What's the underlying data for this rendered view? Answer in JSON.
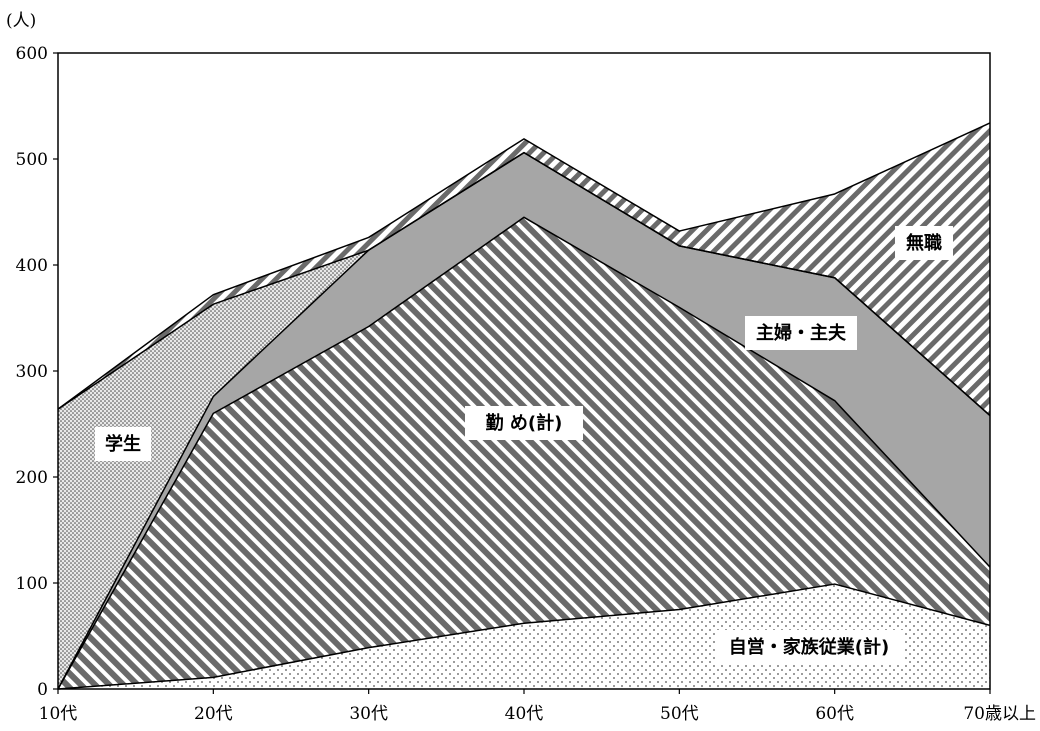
{
  "chart_data": {
    "type": "area",
    "stacked": true,
    "unit_label": "(人)",
    "categories": [
      "10代",
      "20代",
      "30代",
      "40代",
      "50代",
      "60代",
      "70歳以上"
    ],
    "ylim": [
      0,
      600
    ],
    "yticks": [
      0,
      100,
      200,
      300,
      400,
      500,
      600
    ],
    "grid": false,
    "series": [
      {
        "name": "自営・家族従業(計)",
        "values": [
          0,
          11,
          39,
          62,
          75,
          99,
          60
        ],
        "fill": "sparse-dots"
      },
      {
        "name": "勤 め(計)",
        "values": [
          0,
          249,
          303,
          383,
          285,
          173,
          55
        ],
        "fill": "dark-diagonal"
      },
      {
        "name": "主婦・主夫",
        "values": [
          0,
          16,
          72,
          61,
          58,
          116,
          143
        ],
        "fill": "#a6a6a6"
      },
      {
        "name": "学生",
        "values": [
          264,
          87,
          0,
          0,
          0,
          0,
          0
        ],
        "fill": "dense-dots"
      },
      {
        "name": "無職",
        "values": [
          0,
          9,
          12,
          13,
          14,
          79,
          276
        ],
        "fill": "light-diagonal"
      }
    ]
  }
}
